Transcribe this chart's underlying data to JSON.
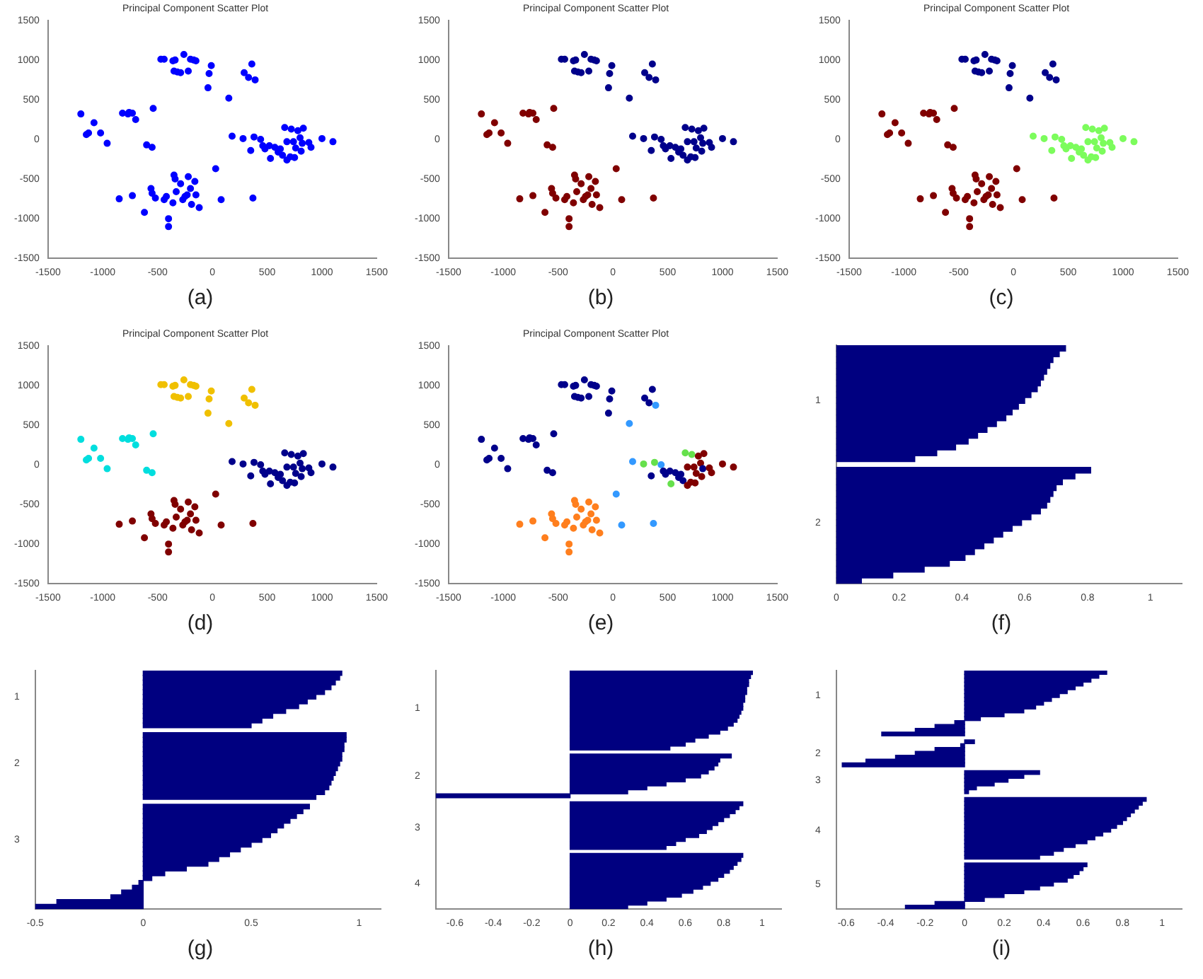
{
  "chart_data": [
    {
      "type": "scatter",
      "title": "Principal Component Scatter Plot",
      "annotations": [
        "(a)"
      ],
      "marker": "circle",
      "xlim": [
        -1500,
        1500
      ],
      "xticks": [
        -1500,
        -1000,
        -500,
        0,
        500,
        1000,
        1500
      ],
      "ylim": [
        -1500,
        1500
      ],
      "yticks": [
        -1500,
        -1000,
        -500,
        0,
        500,
        1000,
        1500
      ],
      "x": [
        -470,
        -440,
        -360,
        -340,
        -350,
        -320,
        -290,
        -260,
        -220,
        -200,
        -170,
        -150,
        -10,
        -30,
        -40,
        150,
        290,
        330,
        360,
        390,
        -1200,
        -1150,
        -1130,
        -1080,
        -1020,
        -960,
        -820,
        -770,
        -760,
        -730,
        -700,
        -540,
        -600,
        -550,
        180,
        280,
        350,
        380,
        440,
        460,
        480,
        520,
        530,
        570,
        600,
        620,
        640,
        660,
        680,
        680,
        710,
        720,
        740,
        750,
        760,
        780,
        800,
        810,
        820,
        830,
        880,
        900,
        1000,
        1100,
        -850,
        -730,
        -620,
        -560,
        -550,
        -520,
        -440,
        -420,
        -400,
        -400,
        -360,
        -350,
        -340,
        -330,
        -290,
        -270,
        -250,
        -230,
        -220,
        -200,
        -190,
        -160,
        -150,
        -120,
        30,
        80,
        370
      ],
      "values": [
        1010,
        1010,
        990,
        1000,
        860,
        850,
        840,
        1070,
        860,
        1010,
        1000,
        990,
        930,
        830,
        650,
        520,
        840,
        780,
        950,
        750,
        320,
        60,
        80,
        210,
        80,
        -50,
        330,
        320,
        340,
        330,
        250,
        390,
        -70,
        -100,
        40,
        10,
        -140,
        30,
        0,
        -80,
        -120,
        -80,
        -240,
        -100,
        -160,
        -120,
        -200,
        150,
        -30,
        -260,
        -220,
        130,
        -30,
        -230,
        -110,
        110,
        20,
        -150,
        -50,
        140,
        -40,
        -100,
        10,
        -30,
        -750,
        -710,
        -920,
        -620,
        -680,
        -740,
        -760,
        -720,
        -1000,
        -1100,
        -800,
        -450,
        -500,
        -660,
        -560,
        -760,
        -720,
        -700,
        -470,
        -620,
        -820,
        -530,
        -700,
        -860,
        -370,
        -760,
        -740
      ],
      "colors": [
        "#0000ff",
        "#0000ff",
        "#0000ff",
        "#0000ff",
        "#0000ff",
        "#0000ff",
        "#0000ff",
        "#0000ff",
        "#0000ff",
        "#0000ff",
        "#0000ff",
        "#0000ff",
        "#0000ff",
        "#0000ff",
        "#0000ff",
        "#0000ff",
        "#0000ff",
        "#0000ff",
        "#0000ff",
        "#0000ff",
        "#0000ff",
        "#0000ff",
        "#0000ff",
        "#0000ff",
        "#0000ff",
        "#0000ff",
        "#0000ff",
        "#0000ff",
        "#0000ff",
        "#0000ff",
        "#0000ff",
        "#0000ff",
        "#0000ff",
        "#0000ff",
        "#0000ff",
        "#0000ff",
        "#0000ff",
        "#0000ff",
        "#0000ff",
        "#0000ff",
        "#0000ff",
        "#0000ff",
        "#0000ff",
        "#0000ff",
        "#0000ff",
        "#0000ff",
        "#0000ff",
        "#0000ff",
        "#0000ff",
        "#0000ff",
        "#0000ff",
        "#0000ff",
        "#0000ff",
        "#0000ff",
        "#0000ff",
        "#0000ff",
        "#0000ff",
        "#0000ff",
        "#0000ff",
        "#0000ff",
        "#0000ff",
        "#0000ff",
        "#0000ff",
        "#0000ff",
        "#0000ff",
        "#0000ff",
        "#0000ff",
        "#0000ff",
        "#0000ff",
        "#0000ff",
        "#0000ff",
        "#0000ff",
        "#0000ff",
        "#0000ff",
        "#0000ff",
        "#0000ff",
        "#0000ff",
        "#0000ff",
        "#0000ff",
        "#0000ff",
        "#0000ff",
        "#0000ff",
        "#0000ff",
        "#0000ff",
        "#0000ff",
        "#0000ff",
        "#0000ff",
        "#0000ff",
        "#0000ff",
        "#0000ff",
        "#0000ff"
      ]
    },
    {
      "type": "scatter",
      "title": "Principal Component Scatter Plot",
      "annotations": [
        "(b)"
      ],
      "marker": "circle",
      "xlim": [
        -1500,
        1500
      ],
      "xticks": [
        -1500,
        -1000,
        -500,
        0,
        500,
        1000,
        1500
      ],
      "ylim": [
        -1500,
        1500
      ],
      "yticks": [
        -1500,
        -1000,
        -500,
        0,
        500,
        1000,
        1500
      ],
      "x": [
        -470,
        -440,
        -360,
        -340,
        -350,
        -320,
        -290,
        -260,
        -220,
        -200,
        -170,
        -150,
        -10,
        -30,
        -40,
        150,
        290,
        330,
        360,
        390,
        -1200,
        -1150,
        -1130,
        -1080,
        -1020,
        -960,
        -820,
        -770,
        -760,
        -730,
        -700,
        -540,
        -600,
        -550,
        180,
        280,
        350,
        380,
        440,
        460,
        480,
        520,
        530,
        570,
        600,
        620,
        640,
        660,
        680,
        680,
        710,
        720,
        740,
        750,
        760,
        780,
        800,
        810,
        820,
        830,
        880,
        900,
        1000,
        1100,
        -850,
        -730,
        -620,
        -560,
        -550,
        -520,
        -440,
        -420,
        -400,
        -400,
        -360,
        -350,
        -340,
        -330,
        -290,
        -270,
        -250,
        -230,
        -220,
        -200,
        -190,
        -160,
        -150,
        -120,
        30,
        80,
        370
      ],
      "values": [
        1010,
        1010,
        990,
        1000,
        860,
        850,
        840,
        1070,
        860,
        1010,
        1000,
        990,
        930,
        830,
        650,
        520,
        840,
        780,
        950,
        750,
        320,
        60,
        80,
        210,
        80,
        -50,
        330,
        320,
        340,
        330,
        250,
        390,
        -70,
        -100,
        40,
        10,
        -140,
        30,
        0,
        -80,
        -120,
        -80,
        -240,
        -100,
        -160,
        -120,
        -200,
        150,
        -30,
        -260,
        -220,
        130,
        -30,
        -230,
        -110,
        110,
        20,
        -150,
        -50,
        140,
        -40,
        -100,
        10,
        -30,
        -750,
        -710,
        -920,
        -620,
        -680,
        -740,
        -760,
        -720,
        -1000,
        -1100,
        -800,
        -450,
        -500,
        -660,
        -560,
        -760,
        -720,
        -700,
        -470,
        -620,
        -820,
        -530,
        -700,
        -860,
        -370,
        -760,
        -740
      ],
      "colors": [
        "#00008b",
        "#00008b",
        "#00008b",
        "#00008b",
        "#00008b",
        "#00008b",
        "#00008b",
        "#00008b",
        "#00008b",
        "#00008b",
        "#00008b",
        "#00008b",
        "#00008b",
        "#00008b",
        "#00008b",
        "#00008b",
        "#00008b",
        "#00008b",
        "#00008b",
        "#00008b",
        "#800000",
        "#800000",
        "#800000",
        "#800000",
        "#800000",
        "#800000",
        "#800000",
        "#800000",
        "#800000",
        "#800000",
        "#800000",
        "#800000",
        "#800000",
        "#800000",
        "#00008b",
        "#00008b",
        "#00008b",
        "#00008b",
        "#00008b",
        "#00008b",
        "#00008b",
        "#00008b",
        "#00008b",
        "#00008b",
        "#00008b",
        "#00008b",
        "#00008b",
        "#00008b",
        "#00008b",
        "#00008b",
        "#00008b",
        "#00008b",
        "#00008b",
        "#00008b",
        "#00008b",
        "#00008b",
        "#00008b",
        "#00008b",
        "#00008b",
        "#00008b",
        "#00008b",
        "#00008b",
        "#00008b",
        "#00008b",
        "#800000",
        "#800000",
        "#800000",
        "#800000",
        "#800000",
        "#800000",
        "#800000",
        "#800000",
        "#800000",
        "#800000",
        "#800000",
        "#800000",
        "#800000",
        "#800000",
        "#800000",
        "#800000",
        "#800000",
        "#800000",
        "#800000",
        "#800000",
        "#800000",
        "#800000",
        "#800000",
        "#800000",
        "#800000",
        "#800000",
        "#800000"
      ]
    },
    {
      "type": "scatter",
      "title": "Principal Component Scatter Plot",
      "annotations": [
        "(c)"
      ],
      "marker": "circle",
      "xlim": [
        -1500,
        1500
      ],
      "xticks": [
        -1500,
        -1000,
        -500,
        0,
        500,
        1000,
        1500
      ],
      "ylim": [
        -1500,
        1500
      ],
      "yticks": [
        -1500,
        -1000,
        -500,
        0,
        500,
        1000,
        1500
      ],
      "x": [
        -470,
        -440,
        -360,
        -340,
        -350,
        -320,
        -290,
        -260,
        -220,
        -200,
        -170,
        -150,
        -10,
        -30,
        -40,
        150,
        290,
        330,
        360,
        390,
        -1200,
        -1150,
        -1130,
        -1080,
        -1020,
        -960,
        -820,
        -770,
        -760,
        -730,
        -700,
        -540,
        -600,
        -550,
        180,
        280,
        350,
        380,
        440,
        460,
        480,
        520,
        530,
        570,
        600,
        620,
        640,
        660,
        680,
        680,
        710,
        720,
        740,
        750,
        760,
        780,
        800,
        810,
        820,
        830,
        880,
        900,
        1000,
        1100,
        -850,
        -730,
        -620,
        -560,
        -550,
        -520,
        -440,
        -420,
        -400,
        -400,
        -360,
        -350,
        -340,
        -330,
        -290,
        -270,
        -250,
        -230,
        -220,
        -200,
        -190,
        -160,
        -150,
        -120,
        30,
        80,
        370
      ],
      "values": [
        1010,
        1010,
        990,
        1000,
        860,
        850,
        840,
        1070,
        860,
        1010,
        1000,
        990,
        930,
        830,
        650,
        520,
        840,
        780,
        950,
        750,
        320,
        60,
        80,
        210,
        80,
        -50,
        330,
        320,
        340,
        330,
        250,
        390,
        -70,
        -100,
        40,
        10,
        -140,
        30,
        0,
        -80,
        -120,
        -80,
        -240,
        -100,
        -160,
        -120,
        -200,
        150,
        -30,
        -260,
        -220,
        130,
        -30,
        -230,
        -110,
        110,
        20,
        -150,
        -50,
        140,
        -40,
        -100,
        10,
        -30,
        -750,
        -710,
        -920,
        -620,
        -680,
        -740,
        -760,
        -720,
        -1000,
        -1100,
        -800,
        -450,
        -500,
        -660,
        -560,
        -760,
        -720,
        -700,
        -470,
        -620,
        -820,
        -530,
        -700,
        -860,
        -370,
        -760,
        -740
      ],
      "colors": [
        "#00008b",
        "#00008b",
        "#00008b",
        "#00008b",
        "#00008b",
        "#00008b",
        "#00008b",
        "#00008b",
        "#00008b",
        "#00008b",
        "#00008b",
        "#00008b",
        "#00008b",
        "#00008b",
        "#00008b",
        "#00008b",
        "#00008b",
        "#00008b",
        "#00008b",
        "#00008b",
        "#800000",
        "#800000",
        "#800000",
        "#800000",
        "#800000",
        "#800000",
        "#800000",
        "#800000",
        "#800000",
        "#800000",
        "#800000",
        "#800000",
        "#800000",
        "#800000",
        "#7cfc5c",
        "#7cfc5c",
        "#7cfc5c",
        "#7cfc5c",
        "#7cfc5c",
        "#7cfc5c",
        "#7cfc5c",
        "#7cfc5c",
        "#7cfc5c",
        "#7cfc5c",
        "#7cfc5c",
        "#7cfc5c",
        "#7cfc5c",
        "#7cfc5c",
        "#7cfc5c",
        "#7cfc5c",
        "#7cfc5c",
        "#7cfc5c",
        "#7cfc5c",
        "#7cfc5c",
        "#7cfc5c",
        "#7cfc5c",
        "#7cfc5c",
        "#7cfc5c",
        "#7cfc5c",
        "#7cfc5c",
        "#7cfc5c",
        "#7cfc5c",
        "#7cfc5c",
        "#7cfc5c",
        "#800000",
        "#800000",
        "#800000",
        "#800000",
        "#800000",
        "#800000",
        "#800000",
        "#800000",
        "#800000",
        "#800000",
        "#800000",
        "#800000",
        "#800000",
        "#800000",
        "#800000",
        "#800000",
        "#800000",
        "#800000",
        "#800000",
        "#800000",
        "#800000",
        "#800000",
        "#800000",
        "#800000",
        "#800000",
        "#800000",
        "#800000"
      ]
    },
    {
      "type": "scatter",
      "title": "Principal Component Scatter Plot",
      "annotations": [
        "(d)"
      ],
      "marker": "circle",
      "xlim": [
        -1500,
        1500
      ],
      "xticks": [
        -1500,
        -1000,
        -500,
        0,
        500,
        1000,
        1500
      ],
      "ylim": [
        -1500,
        1500
      ],
      "yticks": [
        -1500,
        -1000,
        -500,
        0,
        500,
        1000,
        1500
      ],
      "x": [
        -470,
        -440,
        -360,
        -340,
        -350,
        -320,
        -290,
        -260,
        -220,
        -200,
        -170,
        -150,
        -10,
        -30,
        -40,
        150,
        290,
        330,
        360,
        390,
        -1200,
        -1150,
        -1130,
        -1080,
        -1020,
        -960,
        -820,
        -770,
        -760,
        -730,
        -700,
        -540,
        -600,
        -550,
        180,
        280,
        350,
        380,
        440,
        460,
        480,
        520,
        530,
        570,
        600,
        620,
        640,
        660,
        680,
        680,
        710,
        720,
        740,
        750,
        760,
        780,
        800,
        810,
        820,
        830,
        880,
        900,
        1000,
        1100,
        -850,
        -730,
        -620,
        -560,
        -550,
        -520,
        -440,
        -420,
        -400,
        -400,
        -360,
        -350,
        -340,
        -330,
        -290,
        -270,
        -250,
        -230,
        -220,
        -200,
        -190,
        -160,
        -150,
        -120,
        30,
        80,
        370
      ],
      "values": [
        1010,
        1010,
        990,
        1000,
        860,
        850,
        840,
        1070,
        860,
        1010,
        1000,
        990,
        930,
        830,
        650,
        520,
        840,
        780,
        950,
        750,
        320,
        60,
        80,
        210,
        80,
        -50,
        330,
        320,
        340,
        330,
        250,
        390,
        -70,
        -100,
        40,
        10,
        -140,
        30,
        0,
        -80,
        -120,
        -80,
        -240,
        -100,
        -160,
        -120,
        -200,
        150,
        -30,
        -260,
        -220,
        130,
        -30,
        -230,
        -110,
        110,
        20,
        -150,
        -50,
        140,
        -40,
        -100,
        10,
        -30,
        -750,
        -710,
        -920,
        -620,
        -680,
        -740,
        -760,
        -720,
        -1000,
        -1100,
        -800,
        -450,
        -500,
        -660,
        -560,
        -760,
        -720,
        -700,
        -470,
        -620,
        -820,
        -530,
        -700,
        -860,
        -370,
        -760,
        -740
      ],
      "colors": [
        "#f0c000",
        "#f0c000",
        "#f0c000",
        "#f0c000",
        "#f0c000",
        "#f0c000",
        "#f0c000",
        "#f0c000",
        "#f0c000",
        "#f0c000",
        "#f0c000",
        "#f0c000",
        "#f0c000",
        "#f0c000",
        "#f0c000",
        "#f0c000",
        "#f0c000",
        "#f0c000",
        "#f0c000",
        "#f0c000",
        "#00dede",
        "#00dede",
        "#00dede",
        "#00dede",
        "#00dede",
        "#00dede",
        "#00dede",
        "#00dede",
        "#00dede",
        "#00dede",
        "#00dede",
        "#00dede",
        "#00dede",
        "#00dede",
        "#00008b",
        "#00008b",
        "#00008b",
        "#00008b",
        "#00008b",
        "#00008b",
        "#00008b",
        "#00008b",
        "#00008b",
        "#00008b",
        "#00008b",
        "#00008b",
        "#00008b",
        "#00008b",
        "#00008b",
        "#00008b",
        "#00008b",
        "#00008b",
        "#00008b",
        "#00008b",
        "#00008b",
        "#00008b",
        "#00008b",
        "#00008b",
        "#00008b",
        "#00008b",
        "#00008b",
        "#00008b",
        "#00008b",
        "#00008b",
        "#800000",
        "#800000",
        "#800000",
        "#800000",
        "#800000",
        "#800000",
        "#800000",
        "#800000",
        "#800000",
        "#800000",
        "#800000",
        "#800000",
        "#800000",
        "#800000",
        "#800000",
        "#800000",
        "#800000",
        "#800000",
        "#800000",
        "#800000",
        "#800000",
        "#800000",
        "#800000",
        "#800000",
        "#800000",
        "#800000",
        "#800000"
      ]
    },
    {
      "type": "scatter",
      "title": "Principal Component Scatter Plot",
      "annotations": [
        "(e)"
      ],
      "marker": "circle",
      "xlim": [
        -1500,
        1500
      ],
      "xticks": [
        -1500,
        -1000,
        -500,
        0,
        500,
        1000,
        1500
      ],
      "ylim": [
        -1500,
        1500
      ],
      "yticks": [
        -1500,
        -1000,
        -500,
        0,
        500,
        1000,
        1500
      ],
      "x": [
        -470,
        -440,
        -360,
        -340,
        -350,
        -320,
        -290,
        -260,
        -220,
        -200,
        -170,
        -150,
        -10,
        -30,
        -40,
        150,
        290,
        330,
        360,
        390,
        -1200,
        -1150,
        -1130,
        -1080,
        -1020,
        -960,
        -820,
        -770,
        -760,
        -730,
        -700,
        -540,
        -600,
        -550,
        180,
        280,
        350,
        380,
        440,
        460,
        480,
        520,
        530,
        570,
        600,
        620,
        640,
        660,
        680,
        680,
        710,
        720,
        740,
        750,
        760,
        780,
        800,
        810,
        820,
        830,
        880,
        900,
        1000,
        1100,
        -850,
        -730,
        -620,
        -560,
        -550,
        -520,
        -440,
        -420,
        -400,
        -400,
        -360,
        -350,
        -340,
        -330,
        -290,
        -270,
        -250,
        -230,
        -220,
        -200,
        -190,
        -160,
        -150,
        -120,
        30,
        80,
        370
      ],
      "values": [
        1010,
        1010,
        990,
        1000,
        860,
        850,
        840,
        1070,
        860,
        1010,
        1000,
        990,
        930,
        830,
        650,
        520,
        840,
        780,
        950,
        750,
        320,
        60,
        80,
        210,
        80,
        -50,
        330,
        320,
        340,
        330,
        250,
        390,
        -70,
        -100,
        40,
        10,
        -140,
        30,
        0,
        -80,
        -120,
        -80,
        -240,
        -100,
        -160,
        -120,
        -200,
        150,
        -30,
        -260,
        -220,
        130,
        -30,
        -230,
        -110,
        110,
        20,
        -150,
        -50,
        140,
        -40,
        -100,
        10,
        -30,
        -750,
        -710,
        -920,
        -620,
        -680,
        -740,
        -760,
        -720,
        -1000,
        -1100,
        -800,
        -450,
        -500,
        -660,
        -560,
        -760,
        -720,
        -700,
        -470,
        -620,
        -820,
        -530,
        -700,
        -860,
        -370,
        -760,
        -740
      ],
      "colors": [
        "#00008b",
        "#00008b",
        "#00008b",
        "#00008b",
        "#00008b",
        "#00008b",
        "#00008b",
        "#00008b",
        "#00008b",
        "#00008b",
        "#00008b",
        "#00008b",
        "#00008b",
        "#00008b",
        "#00008b",
        "#3399ff",
        "#00008b",
        "#00008b",
        "#00008b",
        "#3399ff",
        "#00008b",
        "#00008b",
        "#00008b",
        "#00008b",
        "#00008b",
        "#00008b",
        "#00008b",
        "#00008b",
        "#00008b",
        "#00008b",
        "#00008b",
        "#00008b",
        "#00008b",
        "#00008b",
        "#3399ff",
        "#66e04c",
        "#00008b",
        "#66e04c",
        "#3399ff",
        "#00008b",
        "#00008b",
        "#00008b",
        "#66e04c",
        "#00008b",
        "#00008b",
        "#00008b",
        "#00008b",
        "#66e04c",
        "#800000",
        "#800000",
        "#800000",
        "#66e04c",
        "#800000",
        "#800000",
        "#800000",
        "#800000",
        "#800000",
        "#800000",
        "#00008b",
        "#800000",
        "#800000",
        "#800000",
        "#800000",
        "#800000",
        "#ff7f1e",
        "#ff7f1e",
        "#ff7f1e",
        "#ff7f1e",
        "#ff7f1e",
        "#ff7f1e",
        "#ff7f1e",
        "#ff7f1e",
        "#ff7f1e",
        "#ff7f1e",
        "#ff7f1e",
        "#ff7f1e",
        "#ff7f1e",
        "#ff7f1e",
        "#ff7f1e",
        "#ff7f1e",
        "#ff7f1e",
        "#ff7f1e",
        "#ff7f1e",
        "#ff7f1e",
        "#ff7f1e",
        "#ff7f1e",
        "#ff7f1e",
        "#ff7f1e",
        "#3399ff",
        "#3399ff",
        "#3399ff"
      ]
    },
    {
      "type": "bar",
      "orientation": "horizontal",
      "annotations": [
        "(f)"
      ],
      "color": "#000080",
      "xlim": [
        0,
        1.1
      ],
      "xticks": [
        0,
        0.2,
        0.4,
        0.6,
        0.8,
        1
      ],
      "categories": [
        null,
        null,
        null,
        null,
        null,
        null,
        null,
        null,
        null,
        "1",
        null,
        null,
        null,
        null,
        null,
        null,
        null,
        null,
        null,
        null,
        null,
        null,
        null,
        null,
        null,
        null,
        null,
        null,
        null,
        null,
        "2",
        null,
        null,
        null,
        null,
        null,
        null,
        null,
        null,
        null,
        null
      ],
      "values": [
        0.73,
        0.71,
        0.69,
        0.68,
        0.67,
        0.66,
        0.65,
        0.64,
        0.62,
        0.6,
        0.58,
        0.56,
        0.54,
        0.51,
        0.48,
        0.45,
        0.42,
        0.38,
        0.32,
        0.25,
        null,
        0.81,
        0.76,
        0.72,
        0.7,
        0.69,
        0.68,
        0.67,
        0.65,
        0.62,
        0.59,
        0.56,
        0.53,
        0.5,
        0.47,
        0.44,
        0.41,
        0.36,
        0.28,
        0.18,
        0.08
      ]
    },
    {
      "type": "bar",
      "orientation": "horizontal",
      "annotations": [
        "(g)"
      ],
      "color": "#000080",
      "xlim": [
        -0.5,
        1.1
      ],
      "xticks": [
        -0.5,
        0,
        0.5,
        1
      ],
      "categories": [
        null,
        null,
        null,
        null,
        null,
        "1",
        null,
        null,
        null,
        null,
        null,
        null,
        null,
        null,
        null,
        null,
        null,
        null,
        null,
        "2",
        null,
        null,
        null,
        null,
        null,
        null,
        null,
        null,
        null,
        null,
        null,
        null,
        null,
        null,
        null,
        "3",
        null,
        null,
        null,
        null,
        null,
        null,
        null,
        null,
        null,
        null,
        null,
        null,
        null,
        null
      ],
      "values": [
        0.92,
        0.91,
        0.89,
        0.87,
        0.84,
        0.8,
        0.76,
        0.72,
        0.66,
        0.6,
        0.55,
        0.5,
        null,
        0.94,
        0.94,
        0.93,
        0.93,
        0.92,
        0.92,
        0.91,
        0.9,
        0.89,
        0.88,
        0.87,
        0.86,
        0.84,
        0.8,
        null,
        0.77,
        0.74,
        0.71,
        0.68,
        0.65,
        0.62,
        0.59,
        0.55,
        0.5,
        0.45,
        0.4,
        0.35,
        0.3,
        0.2,
        0.1,
        0.04,
        -0.02,
        -0.05,
        -0.1,
        -0.15,
        -0.4,
        -0.5
      ]
    },
    {
      "type": "bar",
      "orientation": "horizontal",
      "annotations": [
        "(h)"
      ],
      "color": "#000080",
      "xlim": [
        -0.7,
        1.1
      ],
      "xticks": [
        -0.6,
        -0.4,
        -0.2,
        0,
        0.2,
        0.4,
        0.6,
        0.8,
        1
      ],
      "categories": [
        null,
        null,
        null,
        null,
        null,
        null,
        null,
        null,
        null,
        "1",
        null,
        null,
        null,
        null,
        null,
        null,
        null,
        null,
        null,
        null,
        null,
        null,
        null,
        null,
        null,
        null,
        "2",
        null,
        null,
        null,
        null,
        null,
        null,
        null,
        null,
        null,
        null,
        null,
        null,
        "3",
        null,
        null,
        null,
        null,
        null,
        null,
        null,
        null,
        null,
        null,
        null,
        null,
        null,
        "4",
        null,
        null,
        null,
        null,
        null,
        null
      ],
      "values": [
        0.95,
        0.94,
        0.93,
        0.93,
        0.92,
        0.92,
        0.91,
        0.91,
        0.9,
        0.9,
        0.89,
        0.88,
        0.87,
        0.85,
        0.82,
        0.78,
        0.72,
        0.65,
        0.6,
        0.52,
        null,
        0.84,
        0.78,
        0.77,
        0.75,
        0.72,
        0.68,
        0.6,
        0.5,
        0.4,
        0.3,
        -0.7,
        null,
        0.9,
        0.88,
        0.86,
        0.83,
        0.8,
        0.77,
        0.74,
        0.71,
        0.67,
        0.6,
        0.55,
        0.5,
        null,
        0.9,
        0.89,
        0.87,
        0.85,
        0.83,
        0.8,
        0.77,
        0.73,
        0.69,
        0.64,
        0.58,
        0.5,
        0.4,
        0.3
      ]
    },
    {
      "type": "bar",
      "orientation": "horizontal",
      "annotations": [
        "(i)"
      ],
      "color": "#000080",
      "xlim": [
        -0.65,
        1.1
      ],
      "xticks": [
        -0.6,
        -0.4,
        -0.2,
        0,
        0.2,
        0.4,
        0.6,
        0.8,
        1
      ],
      "categories": [
        null,
        null,
        null,
        null,
        null,
        null,
        "1",
        null,
        null,
        null,
        null,
        null,
        null,
        null,
        null,
        null,
        null,
        null,
        null,
        null,
        null,
        "2",
        null,
        null,
        null,
        null,
        null,
        null,
        "3",
        null,
        null,
        null,
        null,
        null,
        null,
        null,
        null,
        null,
        null,
        null,
        null,
        "4",
        null,
        null,
        null,
        null,
        null,
        null,
        null,
        null,
        null,
        null,
        null,
        null,
        null,
        "5",
        null,
        null,
        null,
        null,
        null,
        null
      ],
      "values": [
        0.72,
        0.68,
        0.64,
        0.6,
        0.56,
        0.52,
        0.48,
        0.44,
        0.4,
        0.36,
        0.3,
        0.2,
        0.08,
        -0.05,
        -0.15,
        -0.25,
        -0.42,
        null,
        0.05,
        -0.02,
        -0.15,
        -0.25,
        -0.35,
        -0.5,
        -0.62,
        null,
        0.38,
        0.3,
        0.22,
        0.15,
        0.06,
        0.02,
        null,
        0.92,
        0.9,
        0.88,
        0.86,
        0.84,
        0.82,
        0.8,
        0.77,
        0.74,
        0.7,
        0.66,
        0.62,
        0.56,
        0.5,
        0.45,
        0.38,
        null,
        0.62,
        0.6,
        0.58,
        0.55,
        0.52,
        0.45,
        0.38,
        0.3,
        0.2,
        0.1,
        -0.15,
        -0.3
      ]
    }
  ]
}
